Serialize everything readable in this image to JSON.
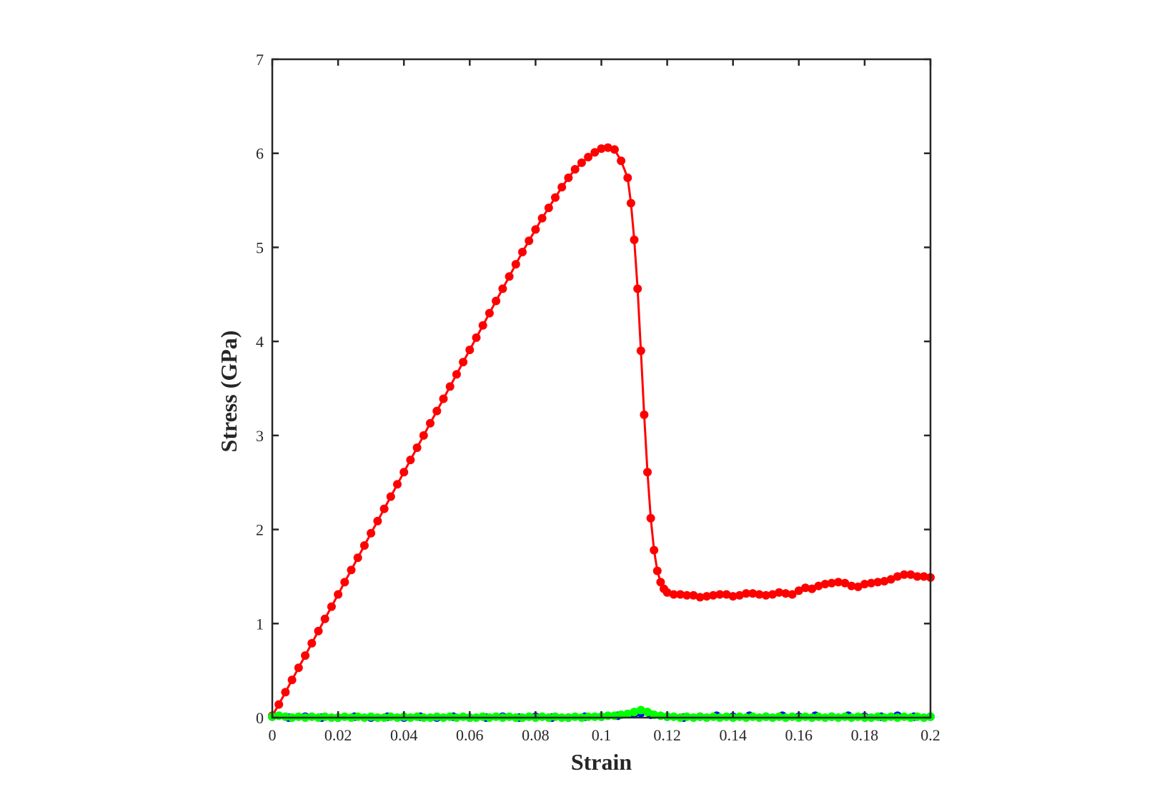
{
  "chart_data": {
    "type": "line",
    "title": "",
    "xlabel": "Strain",
    "ylabel": "Stress (GPa)",
    "xlim": [
      0,
      0.2
    ],
    "ylim": [
      0,
      7
    ],
    "xticks": [
      0,
      0.02,
      0.04,
      0.06,
      0.08,
      0.1,
      0.12,
      0.14,
      0.16,
      0.18,
      0.2
    ],
    "xtick_labels": [
      "0",
      "0.02",
      "0.04",
      "0.06",
      "0.08",
      "0.1",
      "0.12",
      "0.14",
      "0.16",
      "0.18",
      "0.2"
    ],
    "yticks": [
      0,
      1,
      2,
      3,
      4,
      5,
      6,
      7
    ],
    "ytick_labels": [
      "0",
      "1",
      "2",
      "3",
      "4",
      "5",
      "6",
      "7"
    ],
    "grid": false,
    "legend": "none",
    "box": true,
    "series": [
      {
        "color": "#ff0000",
        "marker": "circle",
        "x": [
          0,
          0.002,
          0.004,
          0.006,
          0.008,
          0.01,
          0.012,
          0.014,
          0.016,
          0.018,
          0.02,
          0.022,
          0.024,
          0.026,
          0.028,
          0.03,
          0.032,
          0.034,
          0.036,
          0.038,
          0.04,
          0.042,
          0.044,
          0.046,
          0.048,
          0.05,
          0.052,
          0.054,
          0.056,
          0.058,
          0.06,
          0.062,
          0.064,
          0.066,
          0.068,
          0.07,
          0.072,
          0.074,
          0.076,
          0.078,
          0.08,
          0.082,
          0.084,
          0.086,
          0.088,
          0.09,
          0.092,
          0.094,
          0.096,
          0.098,
          0.1,
          0.102,
          0.104,
          0.106,
          0.108,
          0.109,
          0.11,
          0.111,
          0.112,
          0.113,
          0.114,
          0.115,
          0.116,
          0.117,
          0.118,
          0.119,
          0.12,
          0.122,
          0.124,
          0.126,
          0.128,
          0.13,
          0.132,
          0.134,
          0.136,
          0.138,
          0.14,
          0.142,
          0.144,
          0.146,
          0.148,
          0.15,
          0.152,
          0.154,
          0.156,
          0.158,
          0.16,
          0.162,
          0.164,
          0.166,
          0.168,
          0.17,
          0.172,
          0.174,
          0.176,
          0.178,
          0.18,
          0.182,
          0.184,
          0.186,
          0.188,
          0.19,
          0.192,
          0.194,
          0.196,
          0.198,
          0.2
        ],
        "y": [
          0.02,
          0.14,
          0.27,
          0.4,
          0.53,
          0.66,
          0.79,
          0.92,
          1.05,
          1.18,
          1.31,
          1.44,
          1.57,
          1.7,
          1.83,
          1.96,
          2.09,
          2.22,
          2.35,
          2.48,
          2.61,
          2.74,
          2.87,
          3.0,
          3.13,
          3.26,
          3.39,
          3.52,
          3.65,
          3.78,
          3.91,
          4.04,
          4.17,
          4.3,
          4.43,
          4.56,
          4.69,
          4.82,
          4.95,
          5.07,
          5.19,
          5.31,
          5.42,
          5.53,
          5.64,
          5.74,
          5.83,
          5.9,
          5.96,
          6.01,
          6.05,
          6.06,
          6.04,
          5.92,
          5.74,
          5.47,
          5.08,
          4.56,
          3.9,
          3.22,
          2.61,
          2.12,
          1.78,
          1.56,
          1.44,
          1.37,
          1.33,
          1.31,
          1.31,
          1.3,
          1.3,
          1.28,
          1.29,
          1.3,
          1.31,
          1.31,
          1.29,
          1.3,
          1.32,
          1.32,
          1.31,
          1.3,
          1.31,
          1.33,
          1.32,
          1.31,
          1.35,
          1.38,
          1.37,
          1.4,
          1.42,
          1.43,
          1.44,
          1.43,
          1.4,
          1.39,
          1.42,
          1.43,
          1.44,
          1.45,
          1.47,
          1.5,
          1.52,
          1.52,
          1.5,
          1.5,
          1.49
        ]
      },
      {
        "color": "#0000ff",
        "marker": "circle",
        "x": [
          0,
          0.005,
          0.01,
          0.015,
          0.02,
          0.025,
          0.03,
          0.035,
          0.04,
          0.045,
          0.05,
          0.055,
          0.06,
          0.065,
          0.07,
          0.075,
          0.08,
          0.085,
          0.09,
          0.095,
          0.1,
          0.105,
          0.11,
          0.112,
          0.115,
          0.12,
          0.125,
          0.13,
          0.135,
          0.14,
          0.145,
          0.15,
          0.155,
          0.16,
          0.165,
          0.17,
          0.175,
          0.18,
          0.185,
          0.19,
          0.195,
          0.2
        ],
        "y": [
          0.01,
          0.0,
          0.01,
          0.0,
          0.0,
          0.01,
          0.0,
          0.01,
          0.0,
          0.01,
          0.0,
          0.01,
          0.0,
          0.0,
          0.01,
          0.0,
          0.01,
          0.0,
          0.0,
          0.01,
          0.01,
          0.02,
          0.04,
          0.05,
          0.03,
          0.01,
          0.0,
          0.01,
          0.02,
          0.01,
          0.02,
          0.01,
          0.02,
          0.01,
          0.02,
          0.01,
          0.02,
          0.01,
          0.01,
          0.02,
          0.01,
          0.01
        ]
      },
      {
        "color": "#00ff00",
        "marker": "circle",
        "x": [
          0,
          0.002,
          0.004,
          0.006,
          0.008,
          0.01,
          0.012,
          0.014,
          0.016,
          0.018,
          0.02,
          0.022,
          0.024,
          0.026,
          0.028,
          0.03,
          0.032,
          0.034,
          0.036,
          0.038,
          0.04,
          0.042,
          0.044,
          0.046,
          0.048,
          0.05,
          0.052,
          0.054,
          0.056,
          0.058,
          0.06,
          0.062,
          0.064,
          0.066,
          0.068,
          0.07,
          0.072,
          0.074,
          0.076,
          0.078,
          0.08,
          0.082,
          0.084,
          0.086,
          0.088,
          0.09,
          0.092,
          0.094,
          0.096,
          0.098,
          0.1,
          0.102,
          0.104,
          0.106,
          0.108,
          0.11,
          0.112,
          0.114,
          0.116,
          0.118,
          0.12,
          0.122,
          0.124,
          0.126,
          0.128,
          0.13,
          0.132,
          0.134,
          0.136,
          0.138,
          0.14,
          0.142,
          0.144,
          0.146,
          0.148,
          0.15,
          0.152,
          0.154,
          0.156,
          0.158,
          0.16,
          0.162,
          0.164,
          0.166,
          0.168,
          0.17,
          0.172,
          0.174,
          0.176,
          0.178,
          0.18,
          0.182,
          0.184,
          0.186,
          0.188,
          0.19,
          0.192,
          0.194,
          0.196,
          0.198,
          0.2
        ],
        "y": [
          0.01,
          0.02,
          0.01,
          0.0,
          0.01,
          0.0,
          0.01,
          0.0,
          0.01,
          0.0,
          0.0,
          0.01,
          0.0,
          0.01,
          0.0,
          0.01,
          0.0,
          0.0,
          0.01,
          0.0,
          0.01,
          0.0,
          0.01,
          0.0,
          0.0,
          0.01,
          0.0,
          0.01,
          0.0,
          0.01,
          0.0,
          0.0,
          0.01,
          0.0,
          0.01,
          0.0,
          0.01,
          0.0,
          0.0,
          0.01,
          0.0,
          0.01,
          0.0,
          0.01,
          0.0,
          0.0,
          0.01,
          0.0,
          0.01,
          0.01,
          0.01,
          0.02,
          0.02,
          0.03,
          0.04,
          0.06,
          0.08,
          0.06,
          0.03,
          0.02,
          0.01,
          0.01,
          0.0,
          0.01,
          0.0,
          0.01,
          0.0,
          0.01,
          0.0,
          0.01,
          0.0,
          0.01,
          0.0,
          0.01,
          0.0,
          0.01,
          0.0,
          0.01,
          0.0,
          0.01,
          0.0,
          0.01,
          0.0,
          0.01,
          0.0,
          0.01,
          0.0,
          0.01,
          0.0,
          0.01,
          0.0,
          0.0,
          0.01,
          0.0,
          0.01,
          0.0,
          0.01,
          0.0,
          0.01,
          0.0,
          0.01
        ]
      }
    ]
  }
}
